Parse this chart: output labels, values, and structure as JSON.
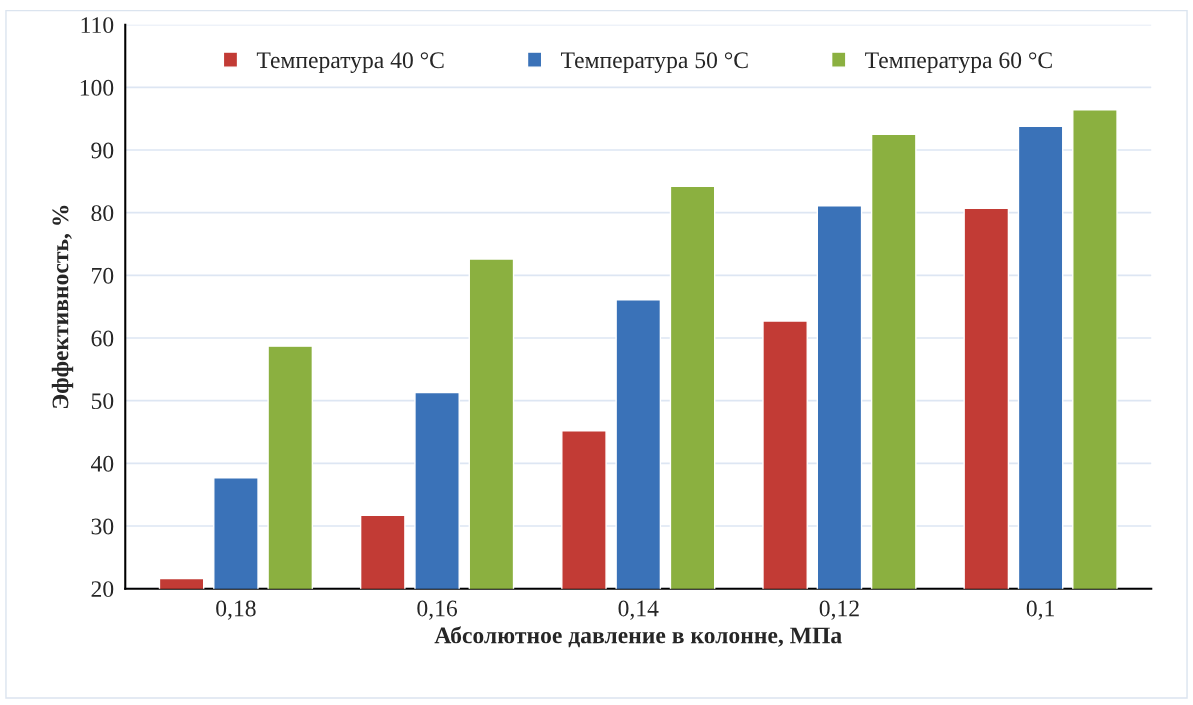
{
  "chart_data": {
    "type": "bar",
    "xlabel": "Абсолютное давление в колонне, МПа",
    "ylabel": "Эффективность, %",
    "categories": [
      "0,18",
      "0,16",
      "0,14",
      "0,12",
      "0,1"
    ],
    "series": [
      {
        "name": "Температура 40 °C",
        "color": "#c23b35",
        "values": [
          21.6,
          31.7,
          45.2,
          62.7,
          80.7
        ]
      },
      {
        "name": "Температура 50 °C",
        "color": "#3a72b8",
        "values": [
          37.7,
          51.3,
          66.1,
          81.1,
          93.8
        ]
      },
      {
        "name": "Температура 60 °C",
        "color": "#8bb040",
        "values": [
          58.7,
          72.6,
          84.2,
          92.5,
          96.4
        ]
      }
    ],
    "ylim": [
      20,
      110
    ],
    "yticks": [
      20,
      30,
      40,
      50,
      60,
      70,
      80,
      90,
      100,
      110
    ],
    "grid": "y",
    "legend": "top"
  }
}
